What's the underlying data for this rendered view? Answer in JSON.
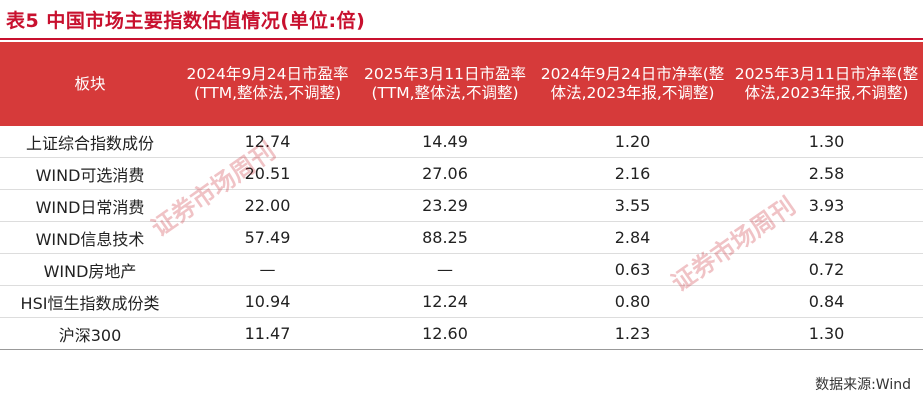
{
  "header": {
    "title": "表5  中国市场主要指数估值情况(单位:倍)"
  },
  "table": {
    "columns": [
      "板块",
      "2024年9月24日市盈率(TTM,整体法,不调整)",
      "2025年3月11日市盈率(TTM,整体法,不调整)",
      "2024年9月24日市净率(整体法,2023年报,不调整)",
      "2025年3月11日市净率(整体法,2023年报,不调整)"
    ],
    "rows": [
      [
        "上证综合指数成份",
        "12.74",
        "14.49",
        "1.20",
        "1.30"
      ],
      [
        "WIND可选消费",
        "20.51",
        "27.06",
        "2.16",
        "2.58"
      ],
      [
        "WIND日常消费",
        "22.00",
        "23.29",
        "3.55",
        "3.93"
      ],
      [
        "WIND信息技术",
        "57.49",
        "88.25",
        "2.84",
        "4.28"
      ],
      [
        "WIND房地产",
        "—",
        "—",
        "0.63",
        "0.72"
      ],
      [
        "HSI恒生指数成份类",
        "10.94",
        "12.24",
        "0.80",
        "0.84"
      ],
      [
        "沪深300",
        "11.47",
        "12.60",
        "1.23",
        "1.30"
      ]
    ]
  },
  "watermark": "证券市场周刊",
  "footer": {
    "source": "数据来源:Wind"
  }
}
